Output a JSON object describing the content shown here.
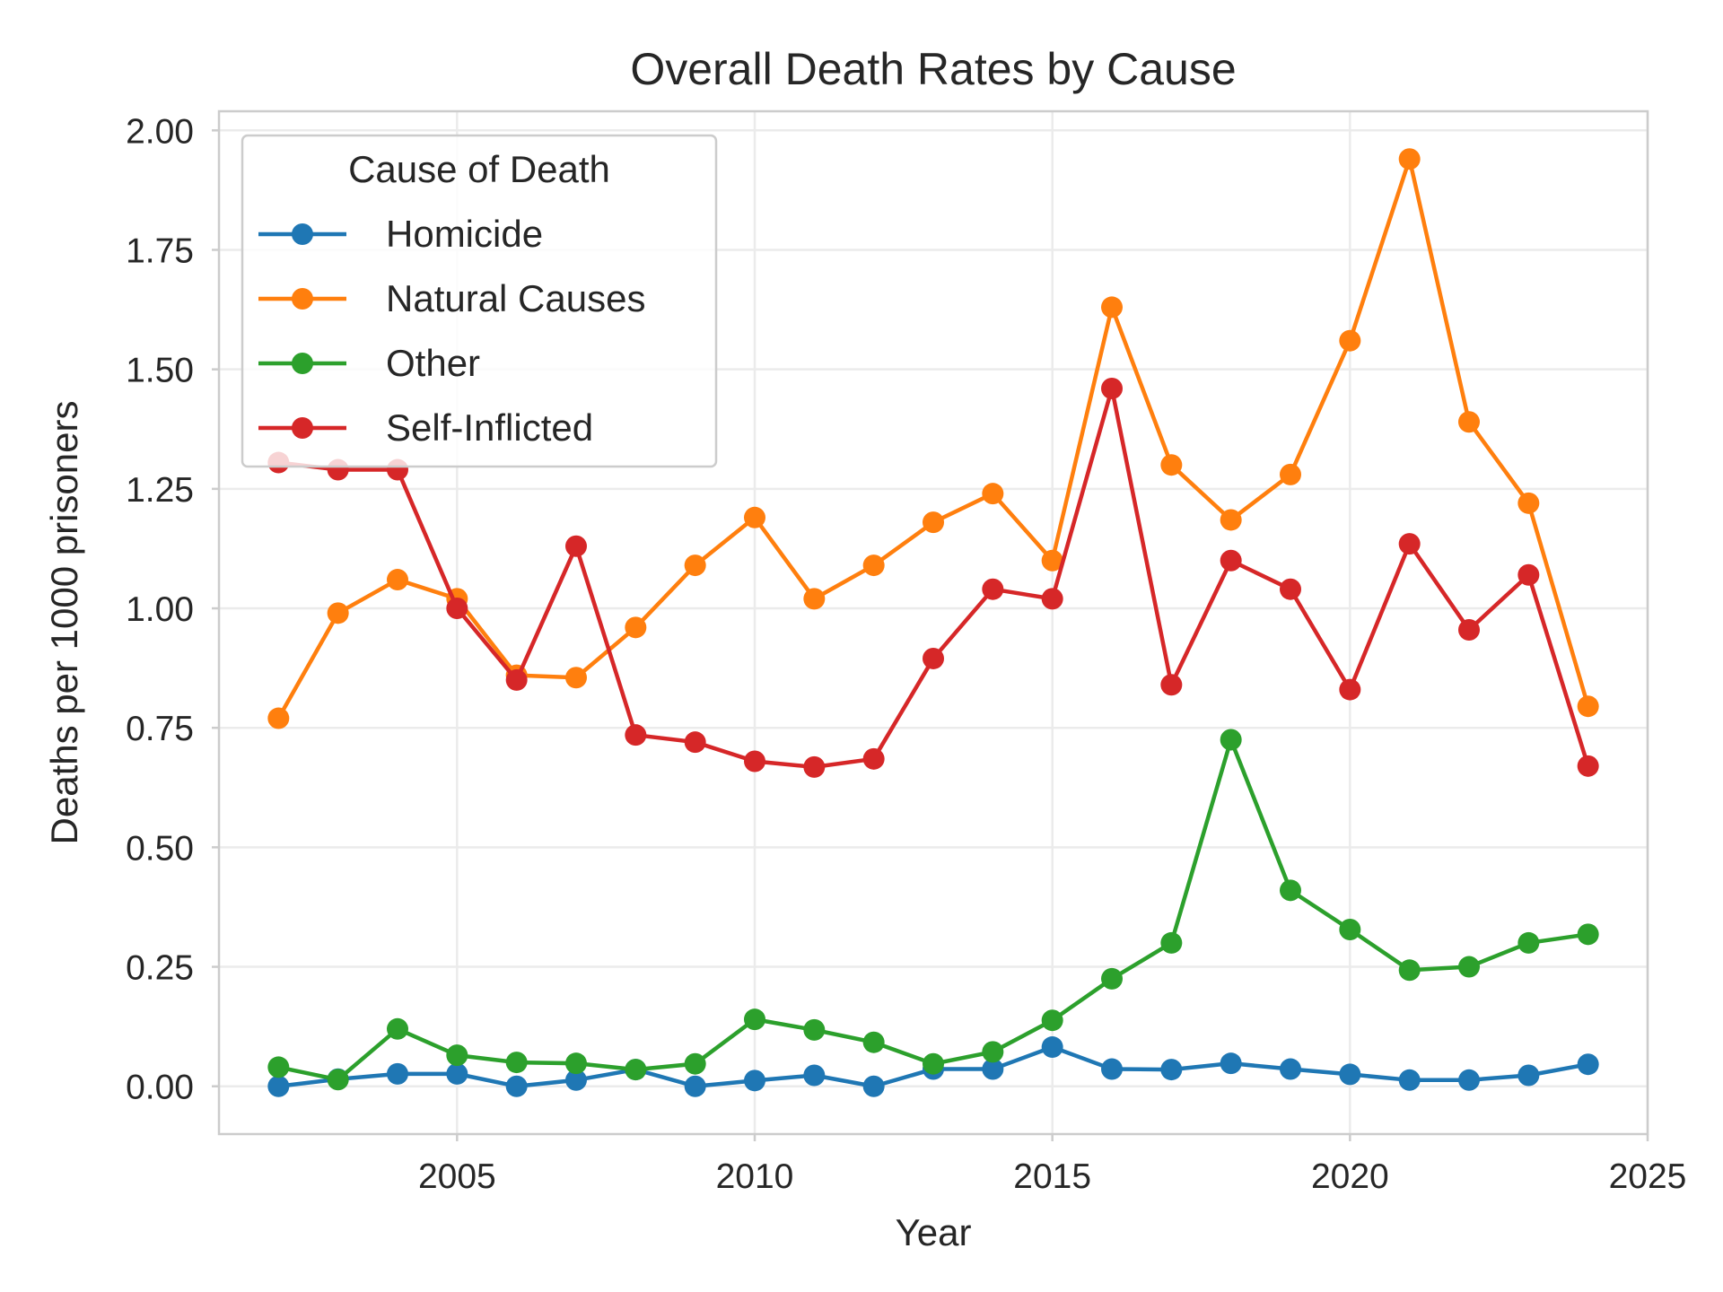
{
  "chart_data": {
    "type": "line",
    "title": "Overall Death Rates by Cause",
    "xlabel": "Year",
    "ylabel": "Deaths per 1000 prisoners",
    "xlim": [
      2001,
      2025
    ],
    "ylim": [
      -0.1,
      2.04
    ],
    "xticks": [
      2005,
      2010,
      2015,
      2020,
      2025
    ],
    "yticks": [
      "0.00",
      "0.25",
      "0.50",
      "0.75",
      "1.00",
      "1.25",
      "1.50",
      "1.75",
      "2.00"
    ],
    "grid": true,
    "legend": {
      "title": "Cause of Death",
      "placement": "upper-left"
    },
    "x": [
      2002,
      2003,
      2004,
      2005,
      2006,
      2007,
      2008,
      2009,
      2010,
      2011,
      2012,
      2013,
      2014,
      2015,
      2016,
      2017,
      2018,
      2019,
      2020,
      2021,
      2022,
      2023,
      2024
    ],
    "series": [
      {
        "name": "Homicide",
        "color": "#1f77b4",
        "values": [
          0.0,
          0.015,
          0.026,
          0.026,
          0.0,
          0.013,
          0.035,
          0.0,
          0.012,
          0.023,
          0.0,
          0.036,
          0.036,
          0.082,
          0.036,
          0.035,
          0.048,
          0.036,
          0.025,
          0.013,
          0.013,
          0.023,
          0.046
        ]
      },
      {
        "name": "Natural Causes",
        "color": "#ff7f0e",
        "values": [
          0.77,
          0.99,
          1.06,
          1.02,
          0.86,
          0.855,
          0.96,
          1.09,
          1.19,
          1.02,
          1.09,
          1.18,
          1.24,
          1.1,
          1.63,
          1.3,
          1.185,
          1.28,
          1.56,
          1.94,
          1.39,
          1.22,
          0.795
        ]
      },
      {
        "name": "Other",
        "color": "#2ca02c",
        "values": [
          0.04,
          0.014,
          0.12,
          0.065,
          0.05,
          0.048,
          0.035,
          0.047,
          0.14,
          0.118,
          0.092,
          0.047,
          0.072,
          0.138,
          0.225,
          0.3,
          0.725,
          0.41,
          0.328,
          0.243,
          0.25,
          0.3,
          0.318
        ]
      },
      {
        "name": "Self-Inflicted",
        "color": "#d62728",
        "values": [
          1.305,
          1.29,
          1.29,
          1.0,
          0.85,
          1.13,
          0.735,
          0.72,
          0.68,
          0.668,
          0.685,
          0.895,
          1.04,
          1.02,
          1.46,
          0.84,
          1.1,
          1.04,
          0.83,
          1.135,
          0.955,
          1.07,
          0.67
        ]
      }
    ]
  }
}
